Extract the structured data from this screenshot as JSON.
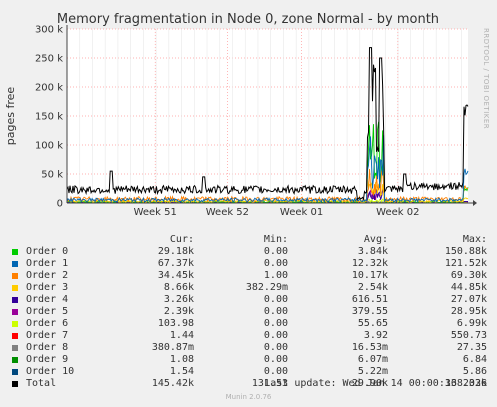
{
  "chart_data": {
    "type": "line",
    "title": "Memory fragmentation in Node 0, zone Normal - by month",
    "ylabel": "pages free",
    "side_label": "RRDTOOL / TOBI OETIKER",
    "ylim": [
      0,
      300000
    ],
    "y_ticks": [
      {
        "v": 0,
        "label": "0"
      },
      {
        "v": 50000,
        "label": "50 k"
      },
      {
        "v": 100000,
        "label": "100 k"
      },
      {
        "v": 150000,
        "label": "150 k"
      },
      {
        "v": 200000,
        "label": "200 k"
      },
      {
        "v": 250000,
        "label": "250 k"
      },
      {
        "v": 300000,
        "label": "300 k"
      }
    ],
    "x_labels": [
      {
        "t": 0.22,
        "label": "Week 51"
      },
      {
        "t": 0.4,
        "label": "Week 52"
      },
      {
        "t": 0.585,
        "label": "Week 01"
      },
      {
        "t": 0.825,
        "label": "Week 02"
      }
    ],
    "series_colors": {
      "Order 0": "#00cc00",
      "Order 1": "#0066b3",
      "Order 2": "#ff8000",
      "Order 3": "#ffcc00",
      "Order 4": "#330099",
      "Order 5": "#990099",
      "Order 6": "#ccff00",
      "Order 7": "#ff0000",
      "Order 8": "#808080",
      "Order 9": "#008f00",
      "Order 10": "#00487d",
      "Total": "#000000"
    }
  },
  "legend": {
    "headers": {
      "cur": "Cur:",
      "min": "Min:",
      "avg": "Avg:",
      "max": "Max:"
    },
    "rows": [
      {
        "name": "Order 0",
        "color": "#00cc00",
        "cur": "29.18k",
        "min": "0.00",
        "avg": "3.84k",
        "max": "150.88k"
      },
      {
        "name": "Order 1",
        "color": "#0066b3",
        "cur": "67.37k",
        "min": "0.00",
        "avg": "12.32k",
        "max": "121.52k"
      },
      {
        "name": "Order 2",
        "color": "#ff8000",
        "cur": "34.45k",
        "min": "1.00",
        "avg": "10.17k",
        "max": "69.30k"
      },
      {
        "name": "Order 3",
        "color": "#ffcc00",
        "cur": "8.66k",
        "min": "382.29m",
        "avg": "2.54k",
        "max": "44.85k"
      },
      {
        "name": "Order 4",
        "color": "#330099",
        "cur": "3.26k",
        "min": "0.00",
        "avg": "616.51",
        "max": "27.07k"
      },
      {
        "name": "Order 5",
        "color": "#990099",
        "cur": "2.39k",
        "min": "0.00",
        "avg": "379.55",
        "max": "28.95k"
      },
      {
        "name": "Order 6",
        "color": "#ccff00",
        "cur": "103.98",
        "min": "0.00",
        "avg": "55.65",
        "max": "6.99k"
      },
      {
        "name": "Order 7",
        "color": "#ff0000",
        "cur": "1.44",
        "min": "0.00",
        "avg": "3.92",
        "max": "550.73"
      },
      {
        "name": "Order 8",
        "color": "#808080",
        "cur": "380.87m",
        "min": "0.00",
        "avg": "16.53m",
        "max": "27.35"
      },
      {
        "name": "Order 9",
        "color": "#008f00",
        "cur": "1.08",
        "min": "0.00",
        "avg": "6.07m",
        "max": "6.84"
      },
      {
        "name": "Order 10",
        "color": "#00487d",
        "cur": "1.54",
        "min": "0.00",
        "avg": "5.22m",
        "max": "5.86"
      },
      {
        "name": "Total",
        "color": "#000000",
        "cur": "145.42k",
        "min": "131.53",
        "avg": "29.90k",
        "max": "338.33k"
      }
    ]
  },
  "last_update": "Last update: Wed Jan 14 00:00:16 2026",
  "footer": "Munin 2.0.76"
}
